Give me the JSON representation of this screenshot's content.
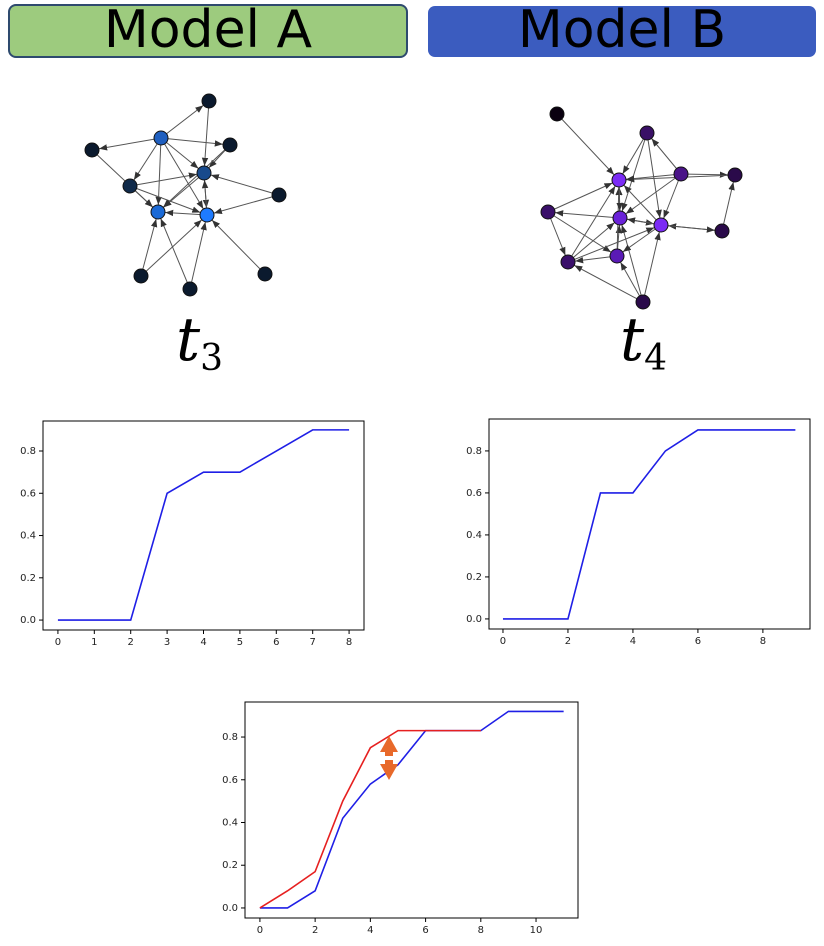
{
  "headers": [
    "Model A",
    "Model B"
  ],
  "graph_labels": [
    {
      "symbol": "t",
      "subscript": "3"
    },
    {
      "symbol": "t",
      "subscript": "4"
    }
  ],
  "chart_data": [
    {
      "type": "line",
      "x": [
        0,
        1,
        2,
        3,
        4,
        5,
        6,
        7,
        8
      ],
      "series": [
        {
          "color": "#1f1fe6",
          "values": [
            0,
            0,
            0,
            0.6,
            0.7,
            0.7,
            0.8,
            0.9,
            0.9
          ]
        }
      ],
      "xlim": [
        -0.41,
        8.41
      ],
      "ylim": [
        -0.047,
        0.942
      ],
      "xticks": [
        0,
        1,
        2,
        3,
        4,
        5,
        6,
        7,
        8
      ],
      "yticks": [
        {
          "value": 0,
          "label": "0.0"
        },
        0.2,
        0.4,
        0.6,
        0.8
      ]
    },
    {
      "type": "line",
      "x": [
        0,
        1,
        2,
        3,
        4,
        5,
        6,
        7,
        8,
        9
      ],
      "series": [
        {
          "color": "#1f1fe6",
          "values": [
            0,
            0,
            0,
            0.6,
            0.6,
            0.8,
            0.9,
            0.9,
            0.9,
            0.9
          ]
        }
      ],
      "xlim": [
        -0.43,
        9.45
      ],
      "ylim": [
        -0.048,
        0.952
      ],
      "xticks": [
        0,
        2,
        4,
        6,
        8
      ],
      "yticks": [
        {
          "value": 0,
          "label": "0.0"
        },
        0.2,
        0.4,
        0.6,
        0.8
      ]
    },
    {
      "type": "line",
      "x": [
        0,
        1,
        2,
        3,
        4,
        5,
        6,
        7,
        8,
        9,
        10,
        11
      ],
      "series": [
        {
          "color": "#1f1fe6",
          "values": [
            0,
            0,
            0.08,
            0.42,
            0.58,
            0.67,
            0.83,
            0.83,
            0.83,
            0.92,
            0.92,
            0.92
          ]
        },
        {
          "color": "#e62020",
          "values": [
            0,
            0.08,
            0.17,
            0.5,
            0.75,
            0.83,
            0.83,
            0.83,
            0.83,
            null,
            null,
            null
          ]
        }
      ],
      "xlim": [
        -0.54,
        11.52
      ],
      "ylim": [
        -0.047,
        0.964
      ],
      "xticks": [
        0,
        2,
        4,
        6,
        8,
        10
      ],
      "yticks": [
        {
          "value": 0,
          "label": "0.0"
        },
        0.2,
        0.4,
        0.6,
        0.8
      ]
    }
  ]
}
